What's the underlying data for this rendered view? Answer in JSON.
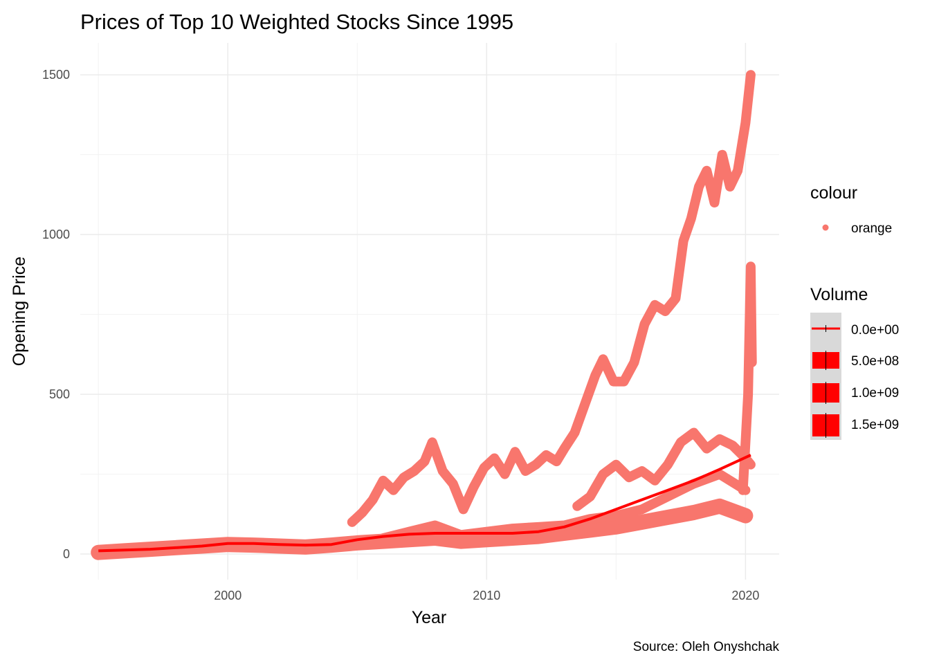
{
  "chart_data": {
    "type": "scatter",
    "title": "Prices of Top 10 Weighted Stocks Since 1995",
    "xlabel": "Year",
    "ylabel": "Opening Price",
    "caption": "Source: Oleh Onyshchak",
    "xlim": [
      1994.3,
      2021.3
    ],
    "ylim": [
      -80,
      1600
    ],
    "x_ticks": [
      2000,
      2010,
      2020
    ],
    "x_tick_labels": [
      "2000",
      "2010",
      "2020"
    ],
    "y_ticks": [
      0,
      500,
      1000,
      1500
    ],
    "y_tick_labels": [
      "0",
      "500",
      "1000",
      "1500"
    ],
    "grid": true,
    "point_color": "#F8766D",
    "trend_color": "#FF0000",
    "series": [
      {
        "x": [
          1995.0,
          1996.0,
          1997.0,
          1998.0,
          1999.0,
          2000.0,
          2001.0,
          2002.0,
          2003.0,
          2004.0,
          2005.0,
          2006.0,
          2007.0,
          2008.0,
          2009.0,
          2010.0,
          2011.0,
          2012.0,
          2013.0,
          2014.0,
          2015.0,
          2016.0,
          2017.0,
          2018.0,
          2019.0,
          2020.0
        ],
        "y": [
          5,
          10,
          15,
          20,
          25,
          30,
          28,
          25,
          22,
          28,
          35,
          40,
          45,
          50,
          40,
          45,
          50,
          55,
          65,
          75,
          85,
          100,
          115,
          130,
          150,
          120
        ]
      },
      {
        "x": [
          2004.8,
          2005.2,
          2005.6,
          2006.0,
          2006.4,
          2006.8,
          2007.2,
          2007.6,
          2007.9,
          2008.3,
          2008.7,
          2009.1,
          2009.5,
          2009.9,
          2010.3,
          2010.7,
          2011.1,
          2011.5,
          2011.9,
          2012.3,
          2012.7,
          2013.0,
          2013.4,
          2013.8,
          2014.2,
          2014.5,
          2014.9,
          2015.3,
          2015.7,
          2016.1,
          2016.5,
          2016.9,
          2017.3,
          2017.6,
          2017.9,
          2018.2,
          2018.5,
          2018.8,
          2019.1,
          2019.4,
          2019.7,
          2020.0,
          2020.2
        ],
        "y": [
          100,
          130,
          170,
          230,
          200,
          240,
          260,
          290,
          350,
          260,
          220,
          140,
          210,
          270,
          300,
          250,
          320,
          260,
          280,
          310,
          290,
          330,
          380,
          470,
          560,
          610,
          540,
          540,
          600,
          720,
          780,
          760,
          800,
          980,
          1050,
          1150,
          1200,
          1100,
          1250,
          1150,
          1200,
          1350,
          1500
        ]
      },
      {
        "x": [
          2013.5,
          2014.0,
          2014.5,
          2015.0,
          2015.5,
          2016.0,
          2016.5,
          2017.0,
          2017.5,
          2018.0,
          2018.5,
          2019.0,
          2019.5,
          2020.0,
          2020.2
        ],
        "y": [
          150,
          180,
          250,
          280,
          240,
          260,
          230,
          280,
          350,
          380,
          330,
          360,
          340,
          300,
          280
        ]
      },
      {
        "x": [
          2019.9,
          2020.0,
          2020.1,
          2020.15,
          2020.2,
          2020.25
        ],
        "y": [
          200,
          350,
          500,
          700,
          900,
          600
        ]
      },
      {
        "x": [
          2006.0,
          2007.0,
          2008.0,
          2009.0,
          2010.0,
          2011.0,
          2012.0,
          2013.0,
          2014.0,
          2015.0,
          2016.0,
          2017.0,
          2018.0,
          2019.0,
          2020.0
        ],
        "y": [
          50,
          70,
          90,
          60,
          70,
          80,
          85,
          90,
          110,
          120,
          140,
          180,
          220,
          250,
          200
        ]
      }
    ],
    "trend": {
      "x": [
        1995,
        1997,
        1999,
        2000,
        2001,
        2002,
        2003,
        2004,
        2005,
        2006,
        2007,
        2008,
        2009,
        2010,
        2011,
        2012,
        2013,
        2014,
        2015,
        2016,
        2017,
        2018,
        2019,
        2020.2
      ],
      "y": [
        10,
        15,
        25,
        33,
        33,
        30,
        28,
        30,
        45,
        55,
        62,
        65,
        65,
        65,
        65,
        70,
        85,
        110,
        140,
        170,
        200,
        230,
        265,
        310
      ]
    },
    "legend": {
      "placement": "right",
      "colour": {
        "title": "colour",
        "items": [
          {
            "label": "orange",
            "color": "#F8766D"
          }
        ]
      },
      "volume": {
        "title": "Volume",
        "items": [
          {
            "label": "0.0e+00",
            "value": 0
          },
          {
            "label": "5.0e+08",
            "value": 500000000
          },
          {
            "label": "1.0e+09",
            "value": 1000000000
          },
          {
            "label": "1.5e+09",
            "value": 1500000000
          }
        ]
      }
    }
  }
}
